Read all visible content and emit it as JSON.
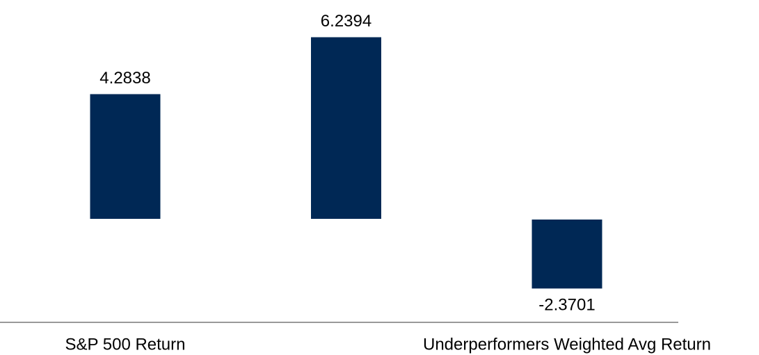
{
  "chart_data": {
    "type": "bar",
    "categories": [
      "S&P 500 Return",
      null,
      "Underperformers Weighted Avg Return"
    ],
    "values": [
      4.2838,
      6.2394,
      -2.3701
    ],
    "color": "#002855"
  }
}
